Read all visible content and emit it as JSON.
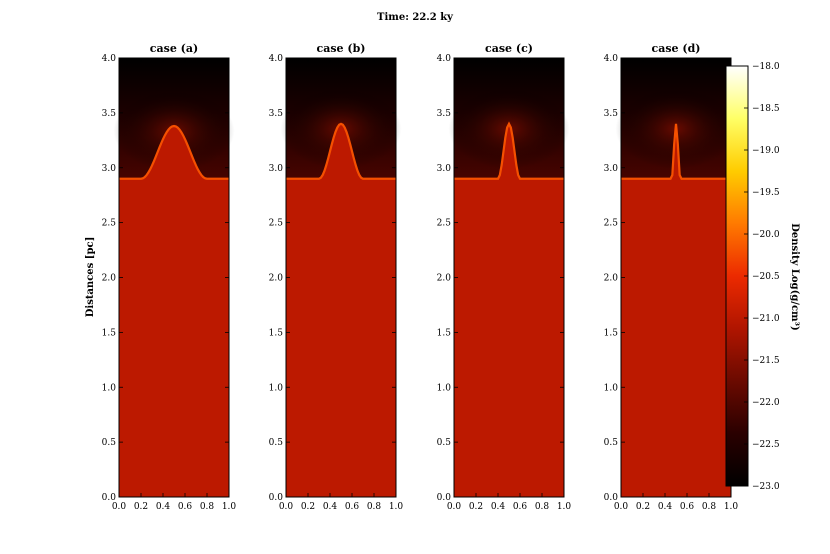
{
  "chart_data": {
    "type": "heatmap",
    "title": "Time: 22.2 ky",
    "ylabel": "Distances [pc]",
    "colorbar": {
      "label": "Density Log(g/cm³)",
      "range": [
        -23.0,
        -18.0
      ],
      "ticks": [
        "−18.0",
        "−18.5",
        "−19.0",
        "−19.5",
        "−20.0",
        "−20.5",
        "−21.0",
        "−21.5",
        "−22.0",
        "−22.5",
        "−23.0"
      ],
      "colors": [
        "#000000",
        "#2a0000",
        "#6b0a00",
        "#b01500",
        "#ec2a00",
        "#ff7a00",
        "#ffcc00",
        "#ffff66",
        "#ffffff"
      ]
    },
    "xlim": [
      0.0,
      1.0
    ],
    "ylim": [
      0.0,
      4.0
    ],
    "x_ticks": [
      "0.0",
      "0.2",
      "0.4",
      "0.6",
      "0.8",
      "1.0"
    ],
    "y_ticks": [
      "0.0",
      "0.5",
      "1.0",
      "1.5",
      "2.0",
      "2.5",
      "3.0",
      "3.5",
      "4.0"
    ],
    "panels": [
      {
        "title": "case (a)",
        "interface_y": 2.9,
        "peak_x": 0.5,
        "peak_y": 3.38,
        "half_width": 0.3
      },
      {
        "title": "case (b)",
        "interface_y": 2.9,
        "peak_x": 0.5,
        "peak_y": 3.4,
        "half_width": 0.2
      },
      {
        "title": "case (c)",
        "interface_y": 2.9,
        "peak_x": 0.5,
        "peak_y": 3.4,
        "half_width": 0.1
      },
      {
        "title": "case (d)",
        "interface_y": 2.9,
        "peak_x": 0.5,
        "peak_y": 3.4,
        "half_width": 0.04
      }
    ],
    "dense_region_log_density": -21.0,
    "ambient_log_density": -23.0
  }
}
